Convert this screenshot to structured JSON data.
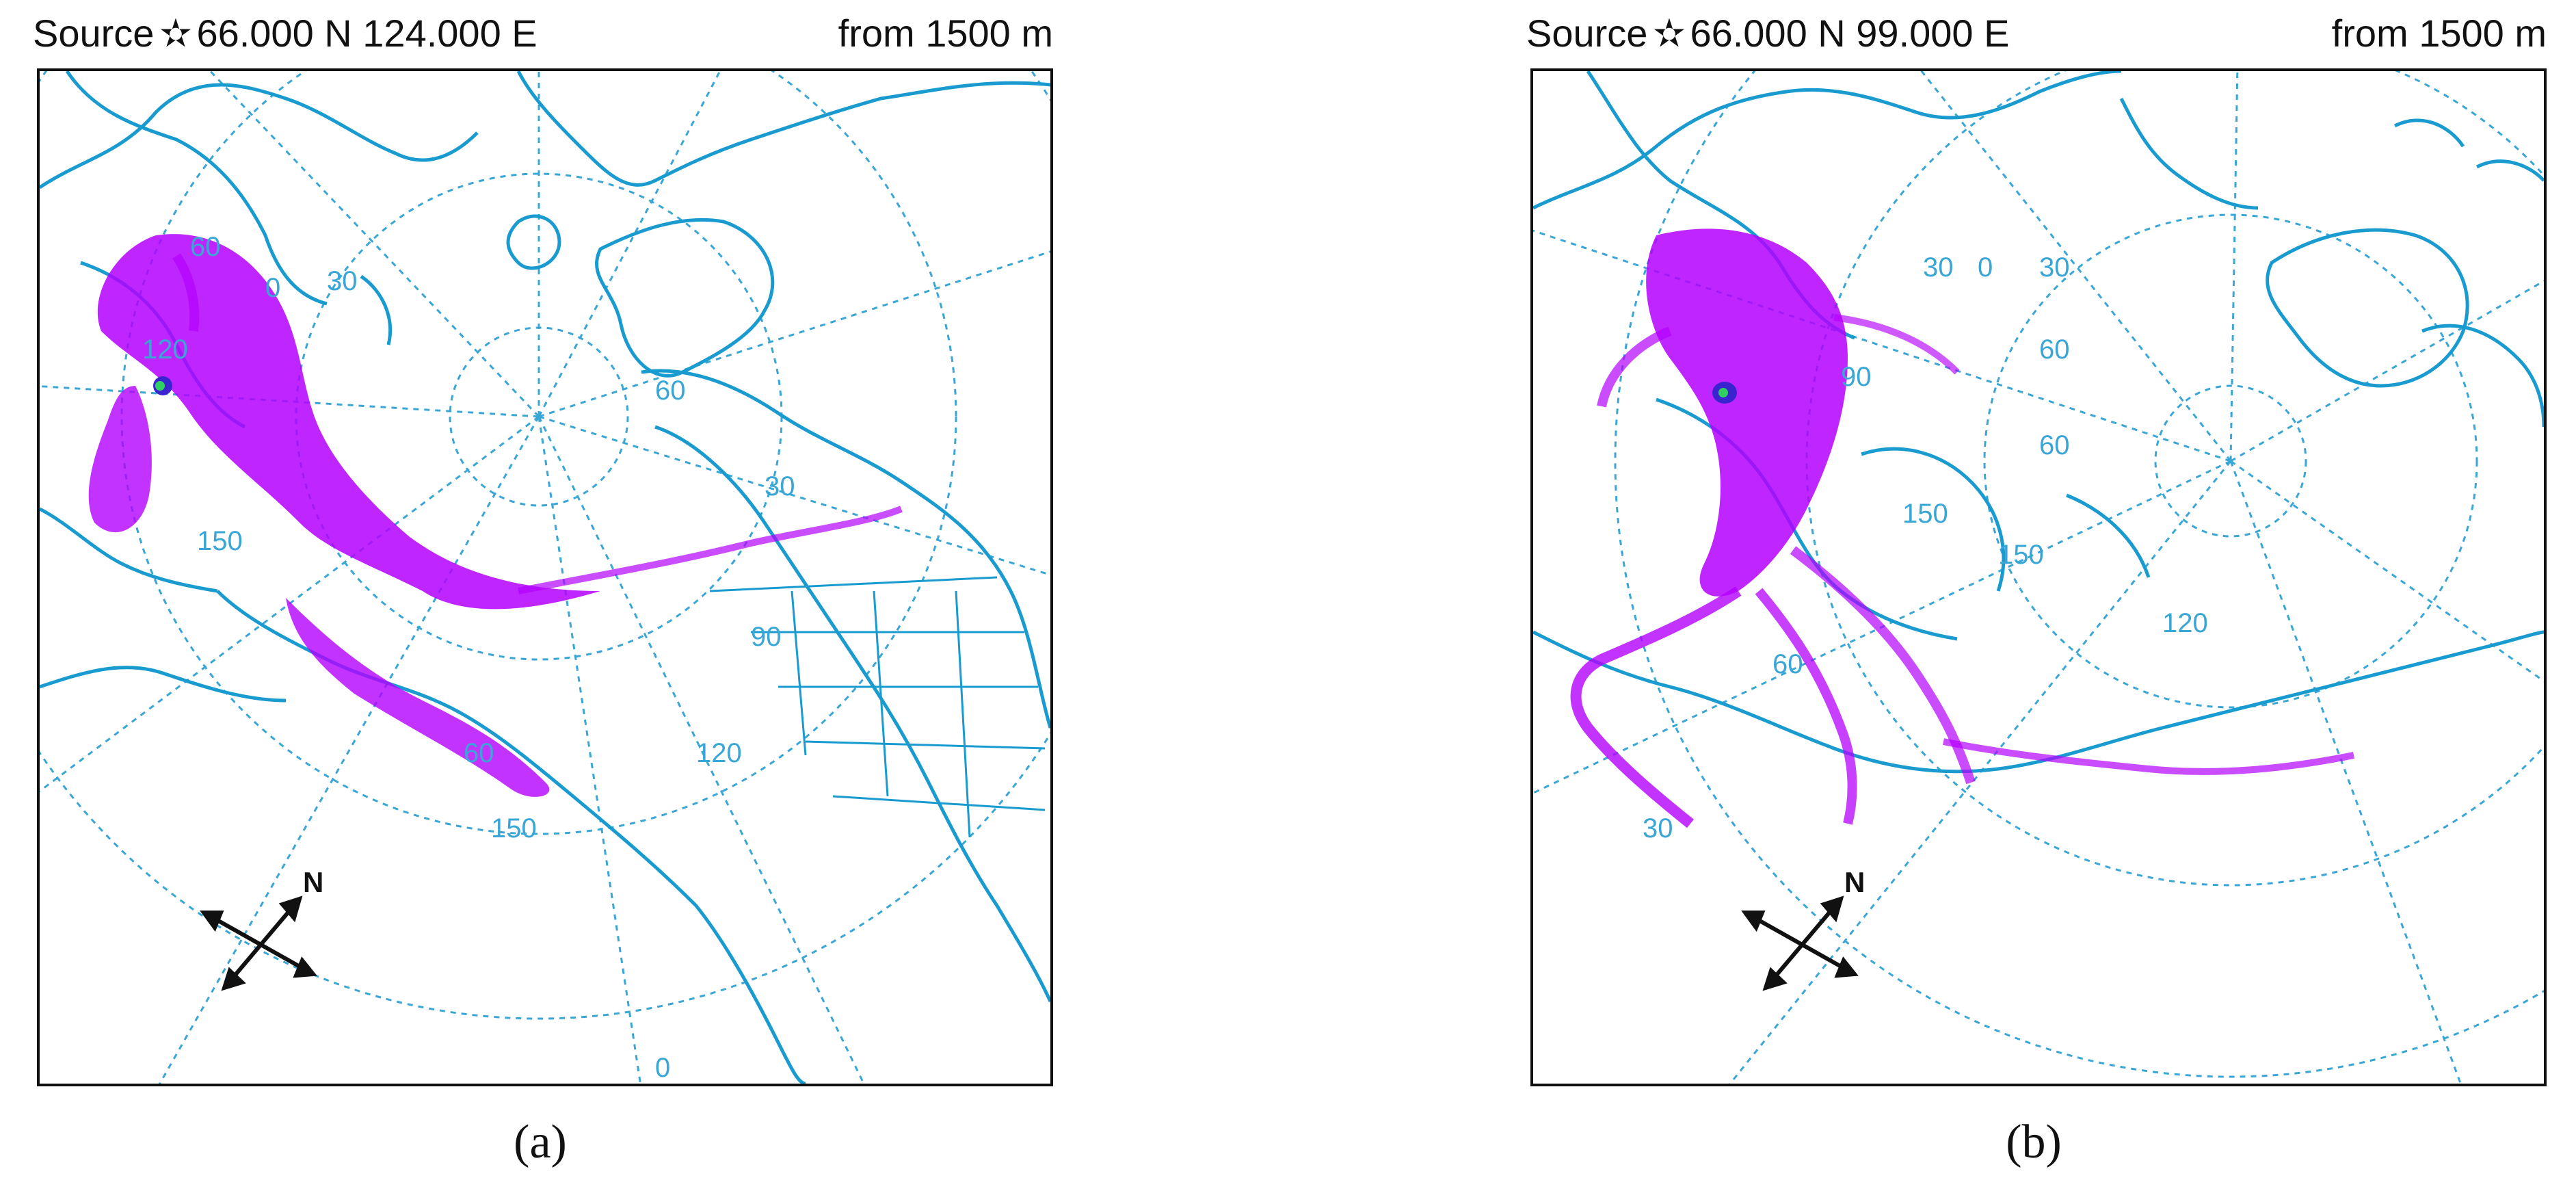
{
  "colors": {
    "coastline": "#1a9bd0",
    "graticule": "#3aa6d6",
    "plume": "#b400ff",
    "plume_core": "#3a24d0",
    "source_marker": "#2fd060",
    "frame": "#111111"
  },
  "panels": [
    {
      "id": "a",
      "header": {
        "source_label": "Source",
        "star_glyph": "✫",
        "latitude": "66.000  N",
        "longitude": "124.000  E",
        "height_text": "from  1500 m"
      },
      "graticule_labels": [
        "60",
        "0",
        "30",
        "60",
        "120",
        "150",
        "90",
        "120",
        "60",
        "150",
        "30",
        "0"
      ],
      "compass_label": "N",
      "caption": "(a)"
    },
    {
      "id": "b",
      "header": {
        "source_label": "Source",
        "star_glyph": "✫",
        "latitude": "66.000  N",
        "longitude": "99.000  E",
        "height_text": "from  1500 m"
      },
      "graticule_labels": [
        "30",
        "0",
        "30",
        "60",
        "90",
        "150",
        "150",
        "60",
        "30",
        "120",
        "60"
      ],
      "compass_label": "N",
      "caption": "(b)"
    }
  ]
}
